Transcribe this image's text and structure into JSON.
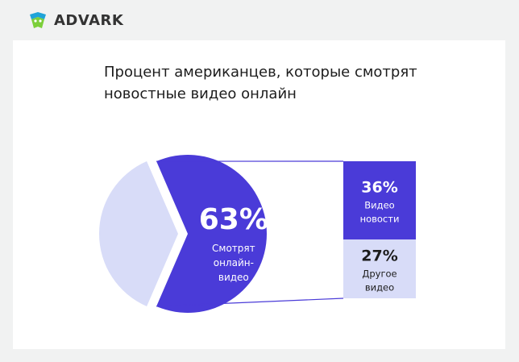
{
  "brand": {
    "name": "ADVARK",
    "colors": {
      "blue": "#1fa3d8",
      "green": "#7ccf3a",
      "text": "#333333"
    }
  },
  "chart_data": {
    "type": "pie",
    "title": "Процент американцев, которые смотрят новостные видео онлайн",
    "title_lines": [
      "Процент американцев, которые смотрят",
      "новостные видео онлайн"
    ],
    "slices": [
      {
        "value": 63,
        "label_value": "63%",
        "label": [
          "Смотрят",
          "онлайн-",
          "видео"
        ],
        "color": "#4a3bd8"
      },
      {
        "value": 37,
        "label_value": "",
        "label": [],
        "color": "#d8dcf8"
      }
    ],
    "breakdown": {
      "of": "63%",
      "segments": [
        {
          "value": 36,
          "label_value": "36%",
          "label": [
            "Видео",
            "новости"
          ],
          "color": "#4a3bd8",
          "text_color": "#ffffff"
        },
        {
          "value": 27,
          "label_value": "27%",
          "label": [
            "Другое",
            "видео"
          ],
          "color": "#d8dcf8",
          "text_color": "#1c1c1c"
        }
      ]
    }
  }
}
